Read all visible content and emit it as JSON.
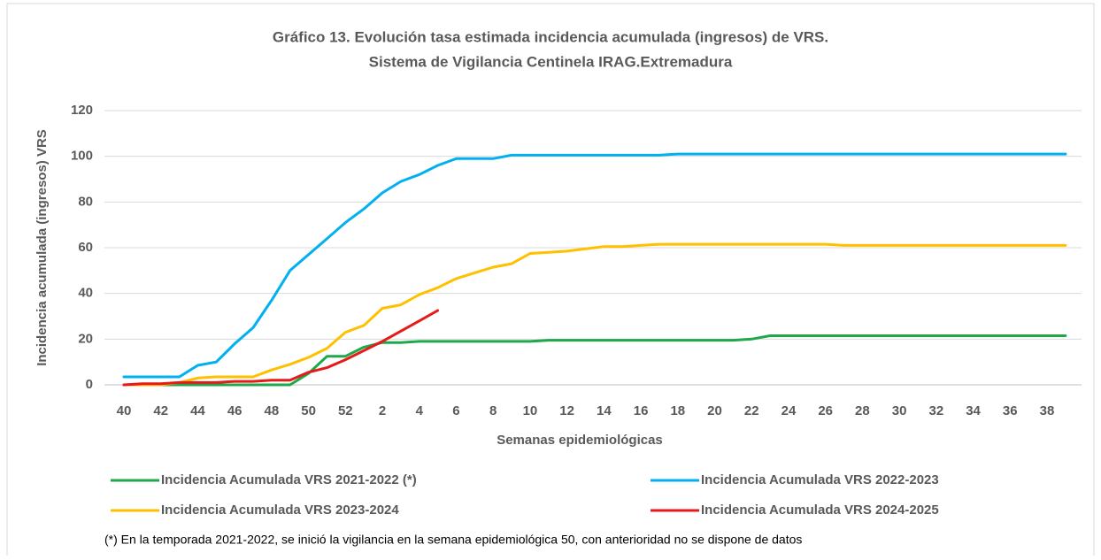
{
  "chart_data": {
    "type": "line",
    "title": [
      "Gráfico 13. Evolución tasa estimada incidencia acumulada (ingresos) de VRS.",
      "Sistema de Vigilancia Centinela IRAG.Extremadura"
    ],
    "y_label": "Incidencia acumulada (ingresos)  VRS",
    "x_label": "Semanas epidemiológicas",
    "footnote": "(*) En la temporada 2021-2022, se inició la vigilancia en la semana epidemiológica 50, con anterioridad no se dispone de datos",
    "categories": [
      "40",
      null,
      "42",
      null,
      "44",
      null,
      "46",
      null,
      "48",
      null,
      "50",
      null,
      "52",
      null,
      "2",
      null,
      "4",
      null,
      "6",
      null,
      "8",
      null,
      "10",
      null,
      "12",
      null,
      "14",
      null,
      "16",
      null,
      "18",
      null,
      "20",
      null,
      "22",
      null,
      "24",
      null,
      "26",
      null,
      "28",
      null,
      "30",
      null,
      "32",
      null,
      "34",
      null,
      "36",
      null,
      "38",
      null
    ],
    "ylim": [
      0,
      120
    ],
    "yticks": [
      0,
      20,
      40,
      60,
      80,
      100,
      120
    ],
    "grid": true,
    "series": [
      {
        "name": "Incidencia Acumulada VRS 2021-2022 (*)",
        "color": "#1ea84a",
        "values": [
          0,
          0,
          0,
          0,
          0,
          0,
          0,
          0,
          0,
          0,
          5,
          12.5,
          12.5,
          16.5,
          18.5,
          18.5,
          19,
          19,
          19,
          19,
          19,
          19,
          19,
          19.5,
          19.5,
          19.5,
          19.5,
          19.5,
          19.5,
          19.5,
          19.5,
          19.5,
          19.5,
          19.5,
          20,
          21.5,
          21.5,
          21.5,
          21.5,
          21.5,
          21.5,
          21.5,
          21.5,
          21.5,
          21.5,
          21.5,
          21.5,
          21.5,
          21.5,
          21.5,
          21.5,
          21.5
        ]
      },
      {
        "name": "Incidencia Acumulada VRS 2022-2023",
        "color": "#00b0f0",
        "values": [
          3.5,
          3.5,
          3.5,
          3.5,
          8.5,
          10,
          18,
          25,
          37,
          50,
          57,
          64,
          71,
          77,
          84,
          89,
          92,
          96,
          99,
          99,
          99,
          100.5,
          100.5,
          100.5,
          100.5,
          100.5,
          100.5,
          100.5,
          100.5,
          100.5,
          101,
          101,
          101,
          101,
          101,
          101,
          101,
          101,
          101,
          101,
          101,
          101,
          101,
          101,
          101,
          101,
          101,
          101,
          101,
          101,
          101,
          101
        ]
      },
      {
        "name": "Incidencia Acumulada VRS 2023-2024",
        "color": "#ffc000",
        "values": [
          0,
          0,
          0,
          1,
          3,
          3.5,
          3.5,
          3.5,
          6.5,
          9,
          12,
          16,
          23,
          26,
          33.5,
          35,
          39.5,
          42.5,
          46.5,
          49,
          51.5,
          53,
          57.5,
          58,
          58.5,
          59.5,
          60.5,
          60.5,
          61,
          61.5,
          61.5,
          61.5,
          61.5,
          61.5,
          61.5,
          61.5,
          61.5,
          61.5,
          61.5,
          61,
          61,
          61,
          61,
          61,
          61,
          61,
          61,
          61,
          61,
          61,
          61,
          61
        ]
      },
      {
        "name": "Incidencia Acumulada VRS 2024-2025",
        "color": "#e51a1a",
        "values": [
          0,
          0.5,
          0.5,
          1,
          1,
          1,
          1.5,
          1.5,
          2,
          2,
          5.5,
          7.5,
          11,
          15,
          19,
          23.5,
          28,
          32.5,
          null,
          null,
          null,
          null,
          null,
          null,
          null,
          null,
          null,
          null,
          null,
          null,
          null,
          null,
          null,
          null,
          null,
          null,
          null,
          null,
          null,
          null,
          null,
          null,
          null,
          null,
          null,
          null,
          null,
          null,
          null,
          null,
          null,
          null
        ]
      }
    ]
  }
}
